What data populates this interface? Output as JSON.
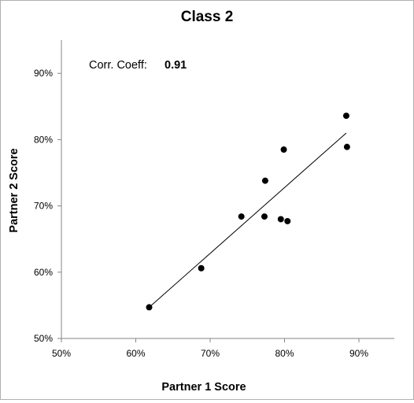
{
  "chart_data": {
    "type": "scatter",
    "title": "Class 2",
    "xlabel": "Partner 1 Score",
    "ylabel": "Partner 2 Score",
    "xlim": [
      50,
      95
    ],
    "ylim": [
      50,
      95
    ],
    "x_ticks": [
      50,
      60,
      70,
      80,
      90
    ],
    "y_ticks": [
      50,
      60,
      70,
      80,
      90
    ],
    "x_tick_labels": [
      "50%",
      "60%",
      "70%",
      "80%",
      "90%"
    ],
    "y_tick_labels": [
      "50%",
      "60%",
      "70%",
      "80%",
      "90%"
    ],
    "grid": false,
    "legend": "none",
    "points": [
      {
        "x": 61.8,
        "y": 54.7
      },
      {
        "x": 68.8,
        "y": 60.6
      },
      {
        "x": 74.2,
        "y": 68.4
      },
      {
        "x": 77.3,
        "y": 68.4
      },
      {
        "x": 77.4,
        "y": 73.8
      },
      {
        "x": 79.5,
        "y": 68.0
      },
      {
        "x": 79.9,
        "y": 78.5
      },
      {
        "x": 80.4,
        "y": 67.7
      },
      {
        "x": 88.3,
        "y": 83.6
      },
      {
        "x": 88.4,
        "y": 78.9
      }
    ],
    "trendline": {
      "x": [
        61.8,
        88.3
      ],
      "y": [
        54.7,
        81.0
      ]
    },
    "annotation": {
      "label": "Corr. Coeff:",
      "value": "0.91"
    },
    "colors": {
      "marker": "#000000",
      "line": "#000000",
      "axis": "#868686"
    }
  }
}
